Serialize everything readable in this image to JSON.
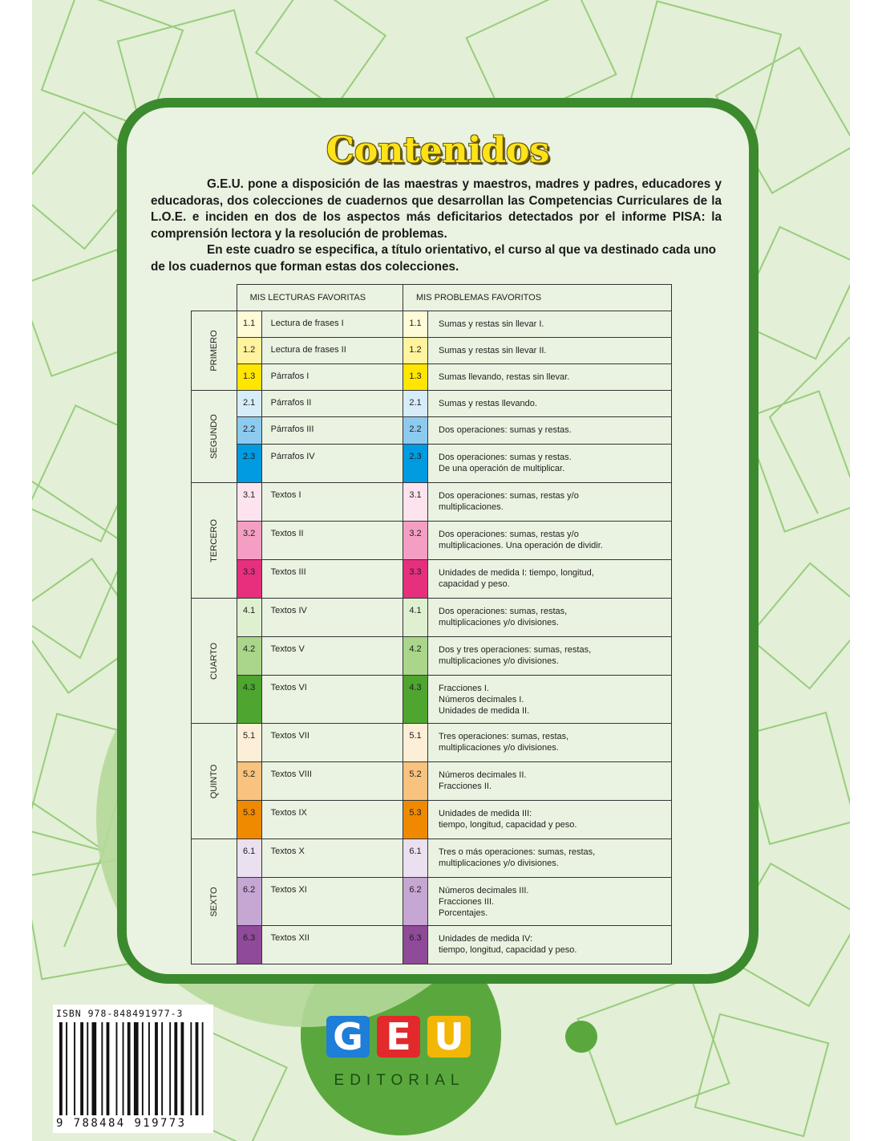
{
  "title": "Contenidos",
  "intro": [
    "G.E.U. pone a disposición de las maestras y maestros, madres y padres, educadores y educadoras, dos colecciones de cuadernos que desarrollan las Competencias Curriculares de la L.O.E. e inciden en dos de los aspectos más deficitarios detectados por el informe PISA: la comprensión lectora y la resolución de problemas.",
    "En este cuadro se especifica, a título orientativo, el curso al que va destinado cada uno de los cuadernos que forman estas dos colecciones."
  ],
  "table": {
    "headers": [
      "MIS LECTURAS FAVORITAS",
      "MIS PROBLEMAS FAVORITOS"
    ],
    "groups": [
      {
        "label": "PRIMERO",
        "rows": [
          {
            "num": "1.1",
            "color": "#fffbd7",
            "lectura": "Lectura de frases I",
            "problema": "Sumas y restas sin llevar I."
          },
          {
            "num": "1.2",
            "color": "#fff39e",
            "lectura": "Lectura de frases II",
            "problema": "Sumas y restas sin llevar II."
          },
          {
            "num": "1.3",
            "color": "#ffe500",
            "lectura": "Párrafos I",
            "problema": "Sumas llevando, restas sin llevar."
          }
        ]
      },
      {
        "label": "SEGUNDO",
        "rows": [
          {
            "num": "2.1",
            "color": "#d7ecf9",
            "lectura": "Párrafos II",
            "problema": "Sumas y restas llevando."
          },
          {
            "num": "2.2",
            "color": "#8dcaf0",
            "lectura": "Párrafos III",
            "problema": "Dos operaciones: sumas y restas."
          },
          {
            "num": "2.3",
            "color": "#009be0",
            "lectura": "Párrafos IV",
            "problema": "Dos operaciones: sumas y restas.\nDe una operación de multiplicar."
          }
        ]
      },
      {
        "label": "TERCERO",
        "rows": [
          {
            "num": "3.1",
            "color": "#fde3ee",
            "lectura": "Textos I",
            "problema": "Dos operaciones: sumas, restas y/o\nmultiplicaciones."
          },
          {
            "num": "3.2",
            "color": "#f59ec4",
            "lectura": "Textos II",
            "problema": "Dos operaciones: sumas, restas y/o\nmultiplicaciones. Una operación de dividir."
          },
          {
            "num": "3.3",
            "color": "#e6307e",
            "lectura": "Textos III",
            "problema": "Unidades de medida I: tiempo, longitud,\ncapacidad y peso."
          }
        ]
      },
      {
        "label": "CUARTO",
        "rows": [
          {
            "num": "4.1",
            "color": "#dff0d0",
            "lectura": "Textos IV",
            "problema": "Dos operaciones: sumas, restas,\nmultiplicaciones y/o divisiones."
          },
          {
            "num": "4.2",
            "color": "#a9d68a",
            "lectura": "Textos V",
            "problema": "Dos y tres operaciones: sumas, restas,\nmultiplicaciones y/o divisiones."
          },
          {
            "num": "4.3",
            "color": "#4ea52f",
            "lectura": "Textos VI",
            "problema": "Fracciones I.\nNúmeros decimales I.\nUnidades de medida II."
          }
        ]
      },
      {
        "label": "QUINTO",
        "rows": [
          {
            "num": "5.1",
            "color": "#fdeed7",
            "lectura": "Textos VII",
            "problema": "Tres operaciones: sumas, restas,\nmultiplicaciones y/o divisiones."
          },
          {
            "num": "5.2",
            "color": "#f8c27f",
            "lectura": "Textos VIII",
            "problema": "Números decimales II.\nFracciones II."
          },
          {
            "num": "5.3",
            "color": "#ef8a00",
            "lectura": "Textos IX",
            "problema": "Unidades de medida III:\ntiempo, longitud, capacidad y peso."
          }
        ]
      },
      {
        "label": "SEXTO",
        "rows": [
          {
            "num": "6.1",
            "color": "#eae0f0",
            "lectura": "Textos X",
            "problema": "Tres o más operaciones: sumas, restas,\nmultiplicaciones y/o divisiones."
          },
          {
            "num": "6.2",
            "color": "#c6a6d3",
            "lectura": "Textos XI",
            "problema": "Números decimales III.\nFracciones III.\nPorcentajes."
          },
          {
            "num": "6.3",
            "color": "#8f4a9a",
            "lectura": "Textos XII",
            "problema": "Unidades de medida IV:\ntiempo, longitud, capacidad y peso."
          }
        ]
      }
    ]
  },
  "logo": {
    "letters": [
      {
        "char": "G",
        "color": "#1e7ed8"
      },
      {
        "char": "E",
        "color": "#e3292b"
      },
      {
        "char": "U",
        "color": "#f2b705"
      }
    ],
    "subtitle": "EDITORIAL"
  },
  "isbn": "ISBN 978-848491977-3",
  "ean": "9 788484 919773",
  "colors": {
    "frame_green": "#3c8a2e",
    "background": "#e3efd6",
    "title_yellow": "#ffe21a"
  }
}
